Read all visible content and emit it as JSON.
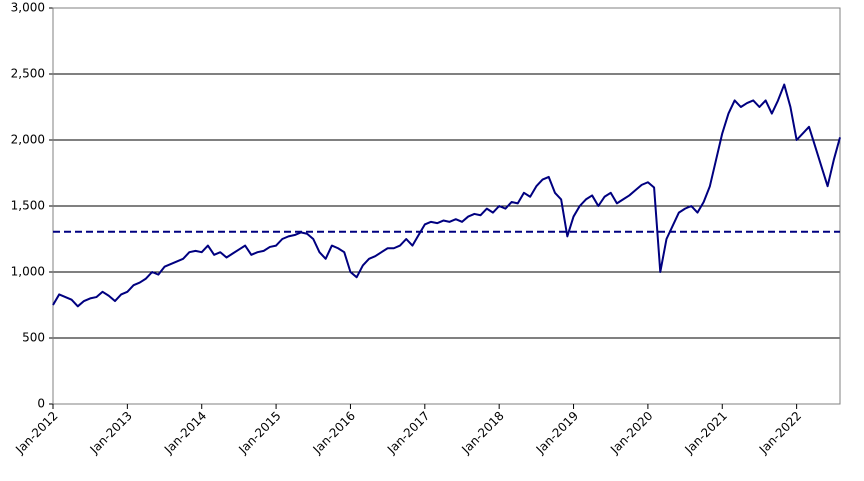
{
  "chart_data": {
    "type": "line",
    "x": [
      "2012-01",
      "2012-02",
      "2012-03",
      "2012-04",
      "2012-05",
      "2012-06",
      "2012-07",
      "2012-08",
      "2012-09",
      "2012-10",
      "2012-11",
      "2012-12",
      "2013-01",
      "2013-02",
      "2013-03",
      "2013-04",
      "2013-05",
      "2013-06",
      "2013-07",
      "2013-08",
      "2013-09",
      "2013-10",
      "2013-11",
      "2013-12",
      "2014-01",
      "2014-02",
      "2014-03",
      "2014-04",
      "2014-05",
      "2014-06",
      "2014-07",
      "2014-08",
      "2014-09",
      "2014-10",
      "2014-11",
      "2014-12",
      "2015-01",
      "2015-02",
      "2015-03",
      "2015-04",
      "2015-05",
      "2015-06",
      "2015-07",
      "2015-08",
      "2015-09",
      "2015-10",
      "2015-11",
      "2015-12",
      "2016-01",
      "2016-02",
      "2016-03",
      "2016-04",
      "2016-05",
      "2016-06",
      "2016-07",
      "2016-08",
      "2016-09",
      "2016-10",
      "2016-11",
      "2016-12",
      "2017-01",
      "2017-02",
      "2017-03",
      "2017-04",
      "2017-05",
      "2017-06",
      "2017-07",
      "2017-08",
      "2017-09",
      "2017-10",
      "2017-11",
      "2017-12",
      "2018-01",
      "2018-02",
      "2018-03",
      "2018-04",
      "2018-05",
      "2018-06",
      "2018-07",
      "2018-08",
      "2018-09",
      "2018-10",
      "2018-11",
      "2018-12",
      "2019-01",
      "2019-02",
      "2019-03",
      "2019-04",
      "2019-05",
      "2019-06",
      "2019-07",
      "2019-08",
      "2019-09",
      "2019-10",
      "2019-11",
      "2019-12",
      "2020-01",
      "2020-02",
      "2020-03",
      "2020-04",
      "2020-05",
      "2020-06",
      "2020-07",
      "2020-08",
      "2020-09",
      "2020-10",
      "2020-11",
      "2020-12",
      "2021-01",
      "2021-02",
      "2021-03",
      "2021-04",
      "2021-05",
      "2021-06",
      "2021-07",
      "2021-08",
      "2021-09",
      "2021-10",
      "2021-11",
      "2021-12",
      "2022-01",
      "2022-02",
      "2022-03",
      "2022-04",
      "2022-05",
      "2022-06",
      "2022-07",
      "2022-08"
    ],
    "series": [
      {
        "color": "#000080",
        "values": [
          750,
          830,
          810,
          790,
          740,
          780,
          800,
          810,
          850,
          820,
          780,
          830,
          850,
          900,
          920,
          950,
          1000,
          980,
          1040,
          1060,
          1080,
          1100,
          1150,
          1160,
          1150,
          1200,
          1130,
          1150,
          1110,
          1140,
          1170,
          1200,
          1130,
          1150,
          1160,
          1190,
          1200,
          1250,
          1270,
          1280,
          1300,
          1290,
          1250,
          1150,
          1100,
          1200,
          1180,
          1150,
          1000,
          960,
          1050,
          1100,
          1120,
          1150,
          1180,
          1180,
          1200,
          1250,
          1200,
          1280,
          1360,
          1380,
          1370,
          1390,
          1380,
          1400,
          1380,
          1420,
          1440,
          1430,
          1480,
          1450,
          1500,
          1480,
          1530,
          1520,
          1600,
          1570,
          1650,
          1700,
          1720,
          1600,
          1550,
          1270,
          1420,
          1500,
          1550,
          1580,
          1500,
          1570,
          1600,
          1520,
          1550,
          1580,
          1620,
          1660,
          1680,
          1640,
          1000,
          1250,
          1350,
          1450,
          1480,
          1500,
          1450,
          1530,
          1650,
          1850,
          2050,
          2200,
          2300,
          2250,
          2280,
          2300,
          2250,
          2300,
          2200,
          2300,
          2420,
          2250,
          2000,
          2050,
          2100,
          1950,
          1800,
          1650,
          1850,
          2020
        ]
      }
    ],
    "reference_line": {
      "value": 1305,
      "style": "dashed",
      "color": "#000080"
    },
    "xlim": [
      "2012-01",
      "2022-08"
    ],
    "xticks": [
      {
        "value": "2012-01",
        "label": "Jan-2012"
      },
      {
        "value": "2013-01",
        "label": "Jan-2013"
      },
      {
        "value": "2014-01",
        "label": "Jan-2014"
      },
      {
        "value": "2015-01",
        "label": "Jan-2015"
      },
      {
        "value": "2016-01",
        "label": "Jan-2016"
      },
      {
        "value": "2017-01",
        "label": "Jan-2017"
      },
      {
        "value": "2018-01",
        "label": "Jan-2018"
      },
      {
        "value": "2019-01",
        "label": "Jan-2019"
      },
      {
        "value": "2020-01",
        "label": "Jan-2020"
      },
      {
        "value": "2021-01",
        "label": "Jan-2021"
      },
      {
        "value": "2022-01",
        "label": "Jan-2022"
      }
    ],
    "ylim": [
      0,
      3000
    ],
    "yticks": [
      0,
      500,
      {
        "value": 1000,
        "label": "1,000"
      },
      {
        "value": 1500,
        "label": "1,500"
      },
      {
        "value": 2000,
        "label": "2,000"
      },
      {
        "value": 2500,
        "label": "2,500"
      },
      {
        "value": 3000,
        "label": "3,000"
      }
    ],
    "grid": true
  }
}
